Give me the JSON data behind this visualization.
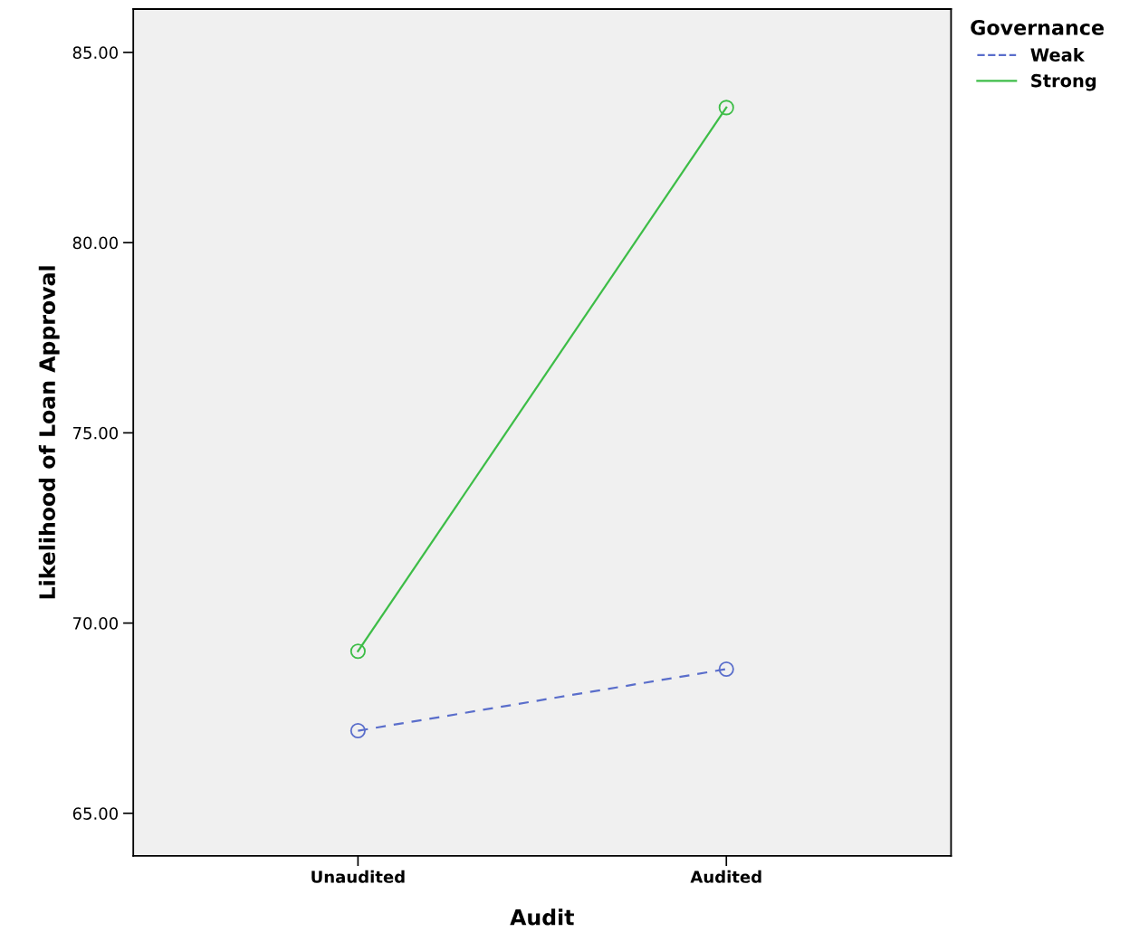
{
  "chart_data": {
    "type": "line",
    "xlabel": "Audit",
    "ylabel": "Likelihood of Loan Approval",
    "legend_title": "Governance",
    "categories": [
      "Unaudited",
      "Audited"
    ],
    "series": [
      {
        "name": "Weak",
        "color": "#5a6ecb",
        "values": [
          67.17,
          68.79
        ],
        "line_style": "dashed"
      },
      {
        "name": "Strong",
        "color": "#3dbd47",
        "values": [
          69.26,
          83.55
        ],
        "line_style": "solid"
      }
    ],
    "ylim": [
      63.88,
      86.14
    ],
    "yticks": [
      {
        "value": 65,
        "label": "65.00"
      },
      {
        "value": 70,
        "label": "70.00"
      },
      {
        "value": 75,
        "label": "75.00"
      },
      {
        "value": 80,
        "label": "80.00"
      },
      {
        "value": 85,
        "label": "85.00"
      }
    ],
    "marker": "circle",
    "grid": false,
    "legend": "top right"
  }
}
